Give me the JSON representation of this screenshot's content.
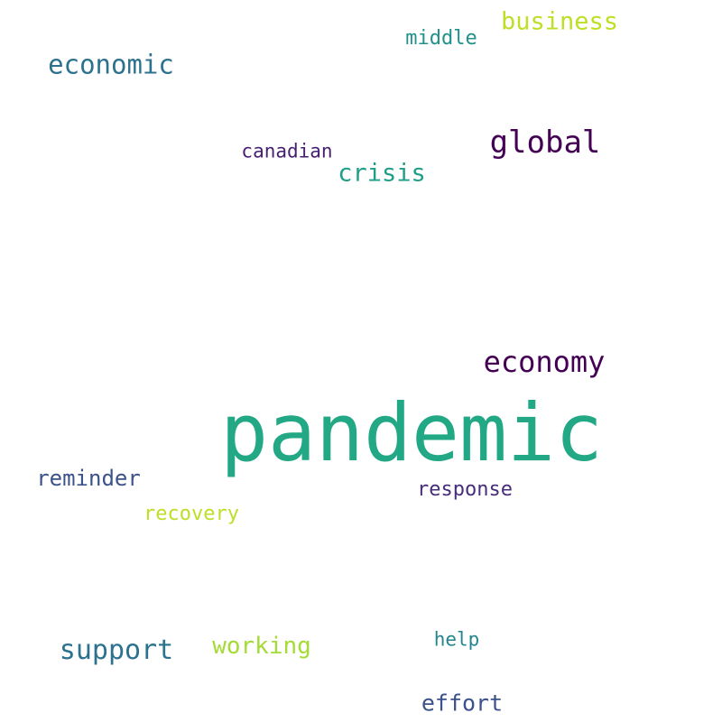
{
  "words": {
    "pandemic": {
      "text": "pandemic",
      "color": "#22a884"
    },
    "economy": {
      "text": "economy",
      "color": "#440154"
    },
    "global": {
      "text": "global",
      "color": "#440154"
    },
    "economic": {
      "text": "economic",
      "color": "#2c728e"
    },
    "business": {
      "text": "business",
      "color": "#bddf26"
    },
    "middle": {
      "text": "middle",
      "color": "#21918c"
    },
    "crisis": {
      "text": "crisis",
      "color": "#1f9e89"
    },
    "canadian": {
      "text": "canadian",
      "color": "#481f70"
    },
    "reminder": {
      "text": "reminder",
      "color": "#3b528b"
    },
    "response": {
      "text": "response",
      "color": "#472d7b"
    },
    "recovery": {
      "text": "recovery",
      "color": "#bddf26"
    },
    "support": {
      "text": "support",
      "color": "#2c728e"
    },
    "working": {
      "text": "working",
      "color": "#a5db36"
    },
    "help": {
      "text": "help",
      "color": "#25858e"
    },
    "effort": {
      "text": "effort",
      "color": "#3b528b"
    }
  }
}
